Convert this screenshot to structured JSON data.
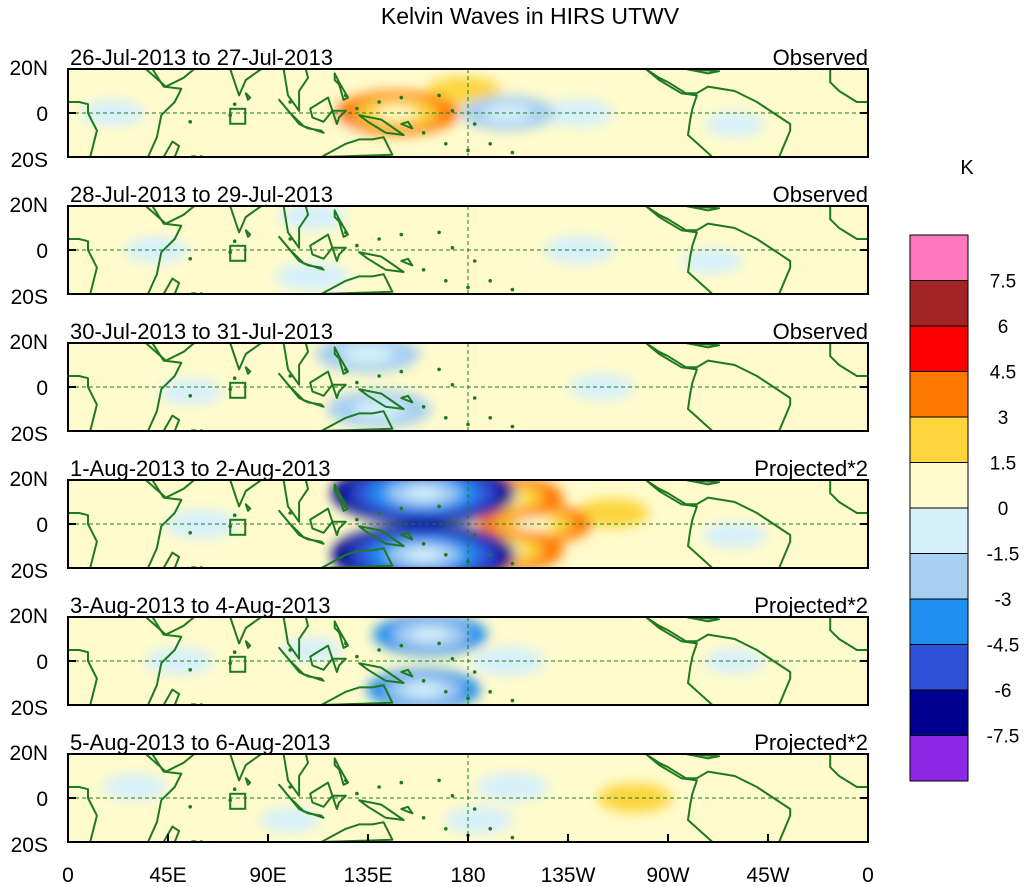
{
  "title": "Kelvin Waves in HIRS UTWV",
  "lat_labels": [
    "20N",
    "0",
    "20S"
  ],
  "lon_labels": [
    "0",
    "45E",
    "90E",
    "135E",
    "180",
    "135W",
    "90W",
    "45W",
    "0"
  ],
  "panels": [
    {
      "date_range": "26-Jul-2013 to 27-Jul-2013",
      "kind": "Observed",
      "anomalies": [
        {
          "lon": 178,
          "lat": 10,
          "value": 1.5
        },
        {
          "lon": 200,
          "lat": -18,
          "value": 1.2
        },
        {
          "lon": 120,
          "lat": -5,
          "value": 1.0
        },
        {
          "lon": 148,
          "lat": 0,
          "value": 4.0
        },
        {
          "lon": 198,
          "lat": 0,
          "value": -2.5
        },
        {
          "lon": 230,
          "lat": 0,
          "value": -1.2
        },
        {
          "lon": 20,
          "lat": 0,
          "value": -1.0
        },
        {
          "lon": 300,
          "lat": -5,
          "value": -0.8
        },
        {
          "lon": 60,
          "lat": 0,
          "value": 0.8
        }
      ]
    },
    {
      "date_range": "28-Jul-2013 to 29-Jul-2013",
      "kind": "Observed",
      "anomalies": [
        {
          "lon": 175,
          "lat": 0,
          "value": 1.4
        },
        {
          "lon": 150,
          "lat": 5,
          "value": 1.0
        },
        {
          "lon": 110,
          "lat": -12,
          "value": -1.5
        },
        {
          "lon": 110,
          "lat": 15,
          "value": -1.2
        },
        {
          "lon": 230,
          "lat": 0,
          "value": -1.3
        },
        {
          "lon": 40,
          "lat": 0,
          "value": -1.0
        },
        {
          "lon": 70,
          "lat": 0,
          "value": 0.8
        },
        {
          "lon": 290,
          "lat": -5,
          "value": -0.8
        }
      ]
    },
    {
      "date_range": "30-Jul-2013 to 31-Jul-2013",
      "kind": "Observed",
      "anomalies": [
        {
          "lon": 135,
          "lat": 15,
          "value": -3.0
        },
        {
          "lon": 140,
          "lat": -10,
          "value": -3.0
        },
        {
          "lon": 180,
          "lat": 5,
          "value": 1.4
        },
        {
          "lon": 198,
          "lat": -5,
          "value": 1.2
        },
        {
          "lon": 55,
          "lat": -2,
          "value": -1.0
        },
        {
          "lon": 240,
          "lat": 0,
          "value": -1.0
        },
        {
          "lon": 280,
          "lat": 5,
          "value": 0.8
        }
      ]
    },
    {
      "date_range": "1-Aug-2013 to 2-Aug-2013",
      "kind": "Projected*2",
      "anomalies": [
        {
          "lon": 160,
          "lat": 14,
          "value": -7.0
        },
        {
          "lon": 160,
          "lat": -14,
          "value": -7.0
        },
        {
          "lon": 195,
          "lat": 12,
          "value": 4.0
        },
        {
          "lon": 195,
          "lat": -12,
          "value": 4.0
        },
        {
          "lon": 210,
          "lat": 0,
          "value": 3.5
        },
        {
          "lon": 245,
          "lat": 5,
          "value": 1.5
        },
        {
          "lon": 60,
          "lat": 0,
          "value": -1.5
        },
        {
          "lon": 280,
          "lat": 5,
          "value": 1.0
        },
        {
          "lon": 330,
          "lat": 0,
          "value": 1.2
        },
        {
          "lon": 300,
          "lat": -5,
          "value": -1.0
        }
      ]
    },
    {
      "date_range": "3-Aug-2013 to 4-Aug-2013",
      "kind": "Projected*2",
      "anomalies": [
        {
          "lon": 163,
          "lat": 12,
          "value": -3.5
        },
        {
          "lon": 160,
          "lat": -13,
          "value": -3.5
        },
        {
          "lon": 198,
          "lat": 0,
          "value": -1.5
        },
        {
          "lon": 230,
          "lat": 5,
          "value": 1.4
        },
        {
          "lon": 230,
          "lat": -8,
          "value": 1.2
        },
        {
          "lon": 50,
          "lat": 0,
          "value": -1.2
        },
        {
          "lon": 110,
          "lat": 5,
          "value": -0.8
        },
        {
          "lon": 300,
          "lat": 0,
          "value": -0.8
        }
      ]
    },
    {
      "date_range": "5-Aug-2013 to 6-Aug-2013",
      "kind": "Projected*2",
      "anomalies": [
        {
          "lon": 200,
          "lat": 5,
          "value": -1.4
        },
        {
          "lon": 185,
          "lat": -10,
          "value": -1.2
        },
        {
          "lon": 155,
          "lat": 15,
          "value": 1.0
        },
        {
          "lon": 255,
          "lat": 0,
          "value": 1.5
        },
        {
          "lon": 30,
          "lat": 5,
          "value": -1.0
        },
        {
          "lon": 100,
          "lat": -10,
          "value": -0.8
        },
        {
          "lon": 350,
          "lat": 0,
          "value": 1.4
        }
      ]
    }
  ],
  "colorbar": {
    "unit": "K",
    "tick_labels": [
      "7.5",
      "6",
      "4.5",
      "3",
      "1.5",
      "0",
      "-1.5",
      "-3",
      "-4.5",
      "-6",
      "-7.5"
    ],
    "levels": [
      -9,
      -7.5,
      -6,
      -4.5,
      -3,
      -1.5,
      0,
      1.5,
      3,
      4.5,
      6,
      7.5,
      9
    ],
    "colors": [
      "#8c28e6",
      "#000090",
      "#3050d8",
      "#1e8ff0",
      "#a6cff2",
      "#d6f0fa",
      "#fffbcc",
      "#fcd53c",
      "#ff7800",
      "#ff0000",
      "#a22424",
      "#ff78bf"
    ]
  }
}
